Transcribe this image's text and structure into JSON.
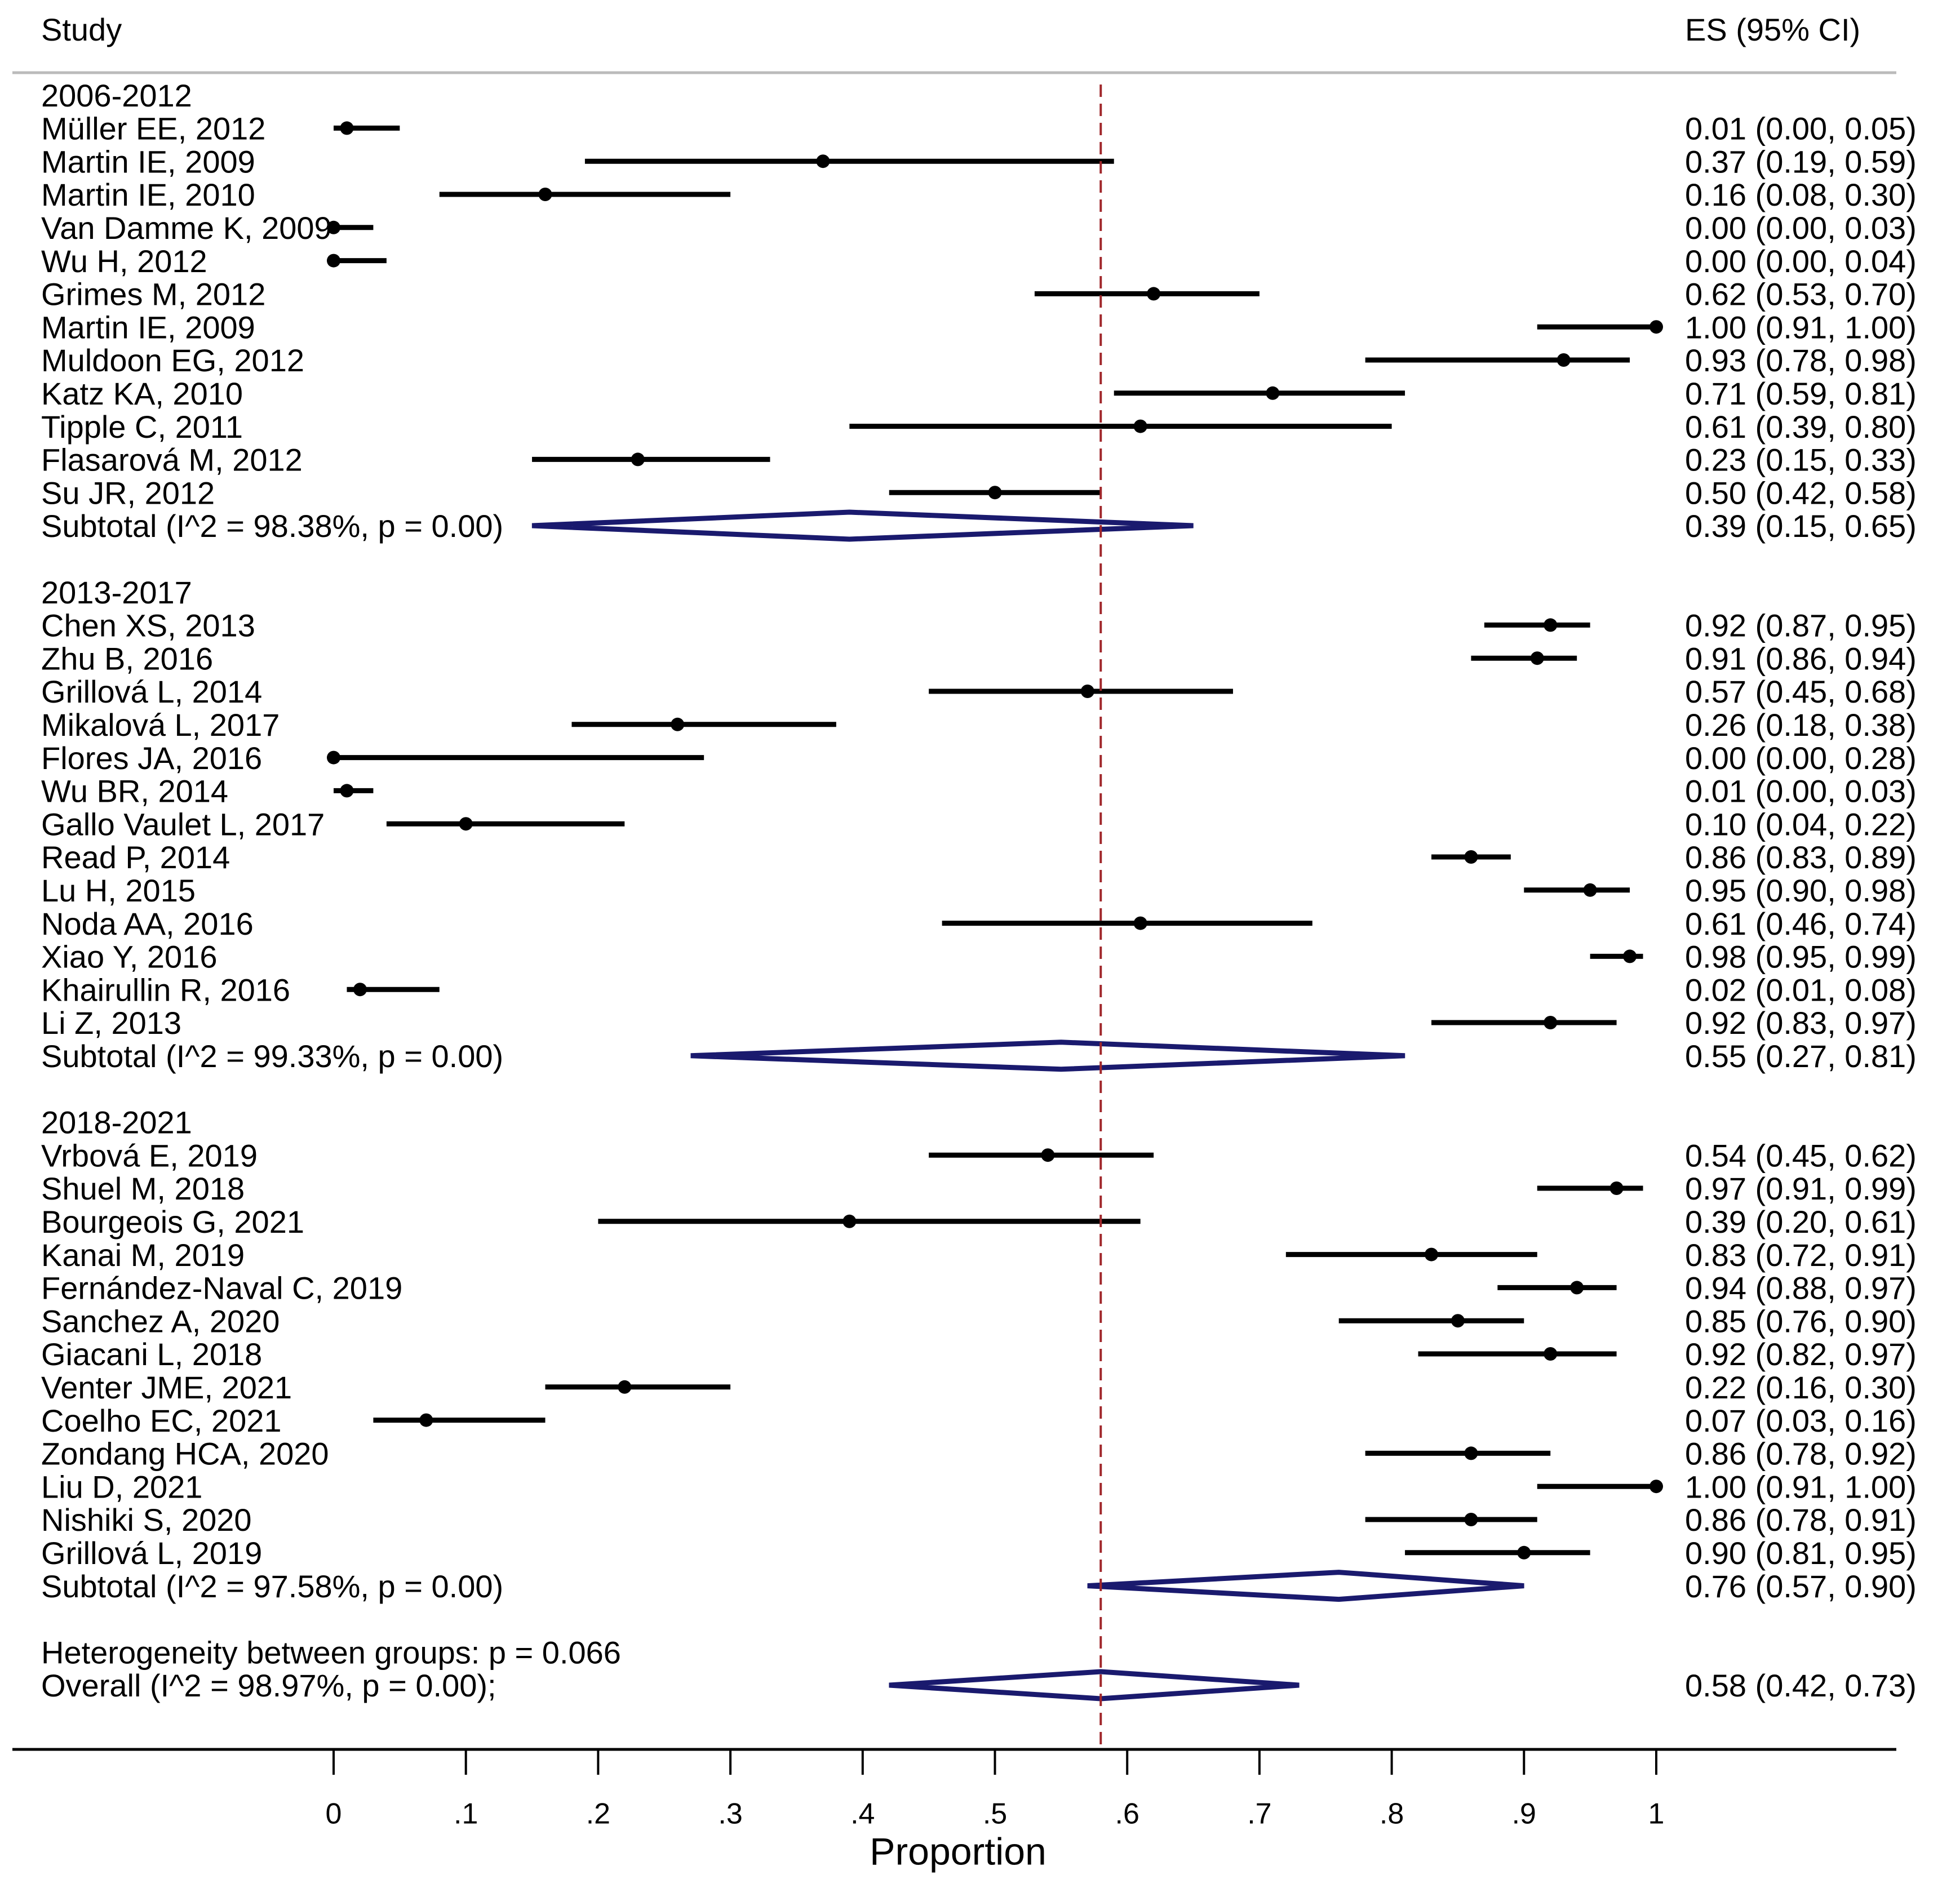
{
  "chart_data": {
    "type": "forest",
    "header": {
      "study": "Study",
      "es": "ES (95% CI)"
    },
    "xlabel": "Proportion",
    "xlim": [
      0,
      1
    ],
    "xticks": [
      0,
      0.1,
      0.2,
      0.3,
      0.4,
      0.5,
      0.6,
      0.7,
      0.8,
      0.9,
      1
    ],
    "xtick_labels": [
      "0",
      ".1",
      ".2",
      ".3",
      ".4",
      ".5",
      ".6",
      ".7",
      ".8",
      ".9",
      "1"
    ],
    "reference_line": 0.58,
    "colors": {
      "study": "#000000",
      "diamond": "#1a1a6e",
      "reference": "#a0262a"
    },
    "groups": [
      {
        "label": "2006-2012",
        "studies": [
          {
            "name": "Müller EE, 2012",
            "es": 0.01,
            "lo": 0.0,
            "hi": 0.05,
            "text": "0.01 (0.00, 0.05)"
          },
          {
            "name": "Martin IE, 2009",
            "es": 0.37,
            "lo": 0.19,
            "hi": 0.59,
            "text": "0.37 (0.19, 0.59)"
          },
          {
            "name": "Martin IE, 2010",
            "es": 0.16,
            "lo": 0.08,
            "hi": 0.3,
            "text": "0.16 (0.08, 0.30)"
          },
          {
            "name": "Van Damme K, 2009",
            "es": 0.0,
            "lo": 0.0,
            "hi": 0.03,
            "text": "0.00 (0.00, 0.03)"
          },
          {
            "name": "Wu H, 2012",
            "es": 0.0,
            "lo": 0.0,
            "hi": 0.04,
            "text": "0.00 (0.00, 0.04)"
          },
          {
            "name": "Grimes  M, 2012",
            "es": 0.62,
            "lo": 0.53,
            "hi": 0.7,
            "text": "0.62 (0.53, 0.70)"
          },
          {
            "name": "Martin IE, 2009",
            "es": 1.0,
            "lo": 0.91,
            "hi": 1.0,
            "text": "1.00 (0.91, 1.00)"
          },
          {
            "name": "Muldoon EG, 2012",
            "es": 0.93,
            "lo": 0.78,
            "hi": 0.98,
            "text": "0.93 (0.78, 0.98)"
          },
          {
            "name": "Katz KA, 2010",
            "es": 0.71,
            "lo": 0.59,
            "hi": 0.81,
            "text": "0.71 (0.59, 0.81)"
          },
          {
            "name": "Tipple C, 2011",
            "es": 0.61,
            "lo": 0.39,
            "hi": 0.8,
            "text": "0.61 (0.39, 0.80)"
          },
          {
            "name": "Flasarová M, 2012",
            "es": 0.23,
            "lo": 0.15,
            "hi": 0.33,
            "text": "0.23 (0.15, 0.33)"
          },
          {
            "name": "Su JR, 2012",
            "es": 0.5,
            "lo": 0.42,
            "hi": 0.58,
            "text": "0.50 (0.42, 0.58)"
          }
        ],
        "subtotal": {
          "label": "Subtotal  (I^2 = 98.38%, p = 0.00)",
          "es": 0.39,
          "lo": 0.15,
          "hi": 0.65,
          "text": "0.39 (0.15, 0.65)"
        }
      },
      {
        "label": "2013-2017",
        "studies": [
          {
            "name": "Chen XS, 2013",
            "es": 0.92,
            "lo": 0.87,
            "hi": 0.95,
            "text": "0.92 (0.87, 0.95)"
          },
          {
            "name": "Zhu B, 2016",
            "es": 0.91,
            "lo": 0.86,
            "hi": 0.94,
            "text": "0.91 (0.86, 0.94)"
          },
          {
            "name": "Grillová L, 2014",
            "es": 0.57,
            "lo": 0.45,
            "hi": 0.68,
            "text": "0.57 (0.45, 0.68)"
          },
          {
            "name": "Mikalová L, 2017",
            "es": 0.26,
            "lo": 0.18,
            "hi": 0.38,
            "text": "0.26 (0.18, 0.38)"
          },
          {
            "name": "Flores JA, 2016",
            "es": 0.0,
            "lo": 0.0,
            "hi": 0.28,
            "text": "0.00 (0.00, 0.28)"
          },
          {
            "name": "Wu BR, 2014",
            "es": 0.01,
            "lo": 0.0,
            "hi": 0.03,
            "text": "0.01 (0.00, 0.03)"
          },
          {
            "name": "Gallo Vaulet L, 2017",
            "es": 0.1,
            "lo": 0.04,
            "hi": 0.22,
            "text": "0.10 (0.04, 0.22)"
          },
          {
            "name": "Read P, 2014",
            "es": 0.86,
            "lo": 0.83,
            "hi": 0.89,
            "text": "0.86 (0.83, 0.89)"
          },
          {
            "name": "Lu H, 2015",
            "es": 0.95,
            "lo": 0.9,
            "hi": 0.98,
            "text": "0.95 (0.90, 0.98)"
          },
          {
            "name": "Noda AA, 2016",
            "es": 0.61,
            "lo": 0.46,
            "hi": 0.74,
            "text": "0.61 (0.46, 0.74)"
          },
          {
            "name": "Xiao Y, 2016",
            "es": 0.98,
            "lo": 0.95,
            "hi": 0.99,
            "text": "0.98 (0.95, 0.99)"
          },
          {
            "name": "Khairullin R, 2016",
            "es": 0.02,
            "lo": 0.01,
            "hi": 0.08,
            "text": "0.02 (0.01, 0.08)"
          },
          {
            "name": "Li Z, 2013",
            "es": 0.92,
            "lo": 0.83,
            "hi": 0.97,
            "text": "0.92 (0.83, 0.97)"
          }
        ],
        "subtotal": {
          "label": "Subtotal  (I^2 = 99.33%, p = 0.00)",
          "es": 0.55,
          "lo": 0.27,
          "hi": 0.81,
          "text": "0.55 (0.27, 0.81)"
        }
      },
      {
        "label": "2018-2021",
        "studies": [
          {
            "name": "Vrbová E, 2019",
            "es": 0.54,
            "lo": 0.45,
            "hi": 0.62,
            "text": "0.54 (0.45, 0.62)"
          },
          {
            "name": "Shuel M, 2018",
            "es": 0.97,
            "lo": 0.91,
            "hi": 0.99,
            "text": "0.97 (0.91, 0.99)"
          },
          {
            "name": "Bourgeois G, 2021",
            "es": 0.39,
            "lo": 0.2,
            "hi": 0.61,
            "text": "0.39 (0.20, 0.61)"
          },
          {
            "name": "Kanai M, 2019",
            "es": 0.83,
            "lo": 0.72,
            "hi": 0.91,
            "text": "0.83 (0.72, 0.91)"
          },
          {
            "name": "Fernández-Naval C, 2019",
            "es": 0.94,
            "lo": 0.88,
            "hi": 0.97,
            "text": "0.94 (0.88, 0.97)"
          },
          {
            "name": "Sanchez A, 2020",
            "es": 0.85,
            "lo": 0.76,
            "hi": 0.9,
            "text": "0.85 (0.76, 0.90)"
          },
          {
            "name": "Giacani L, 2018",
            "es": 0.92,
            "lo": 0.82,
            "hi": 0.97,
            "text": "0.92 (0.82, 0.97)"
          },
          {
            "name": "Venter JME, 2021",
            "es": 0.22,
            "lo": 0.16,
            "hi": 0.3,
            "text": "0.22 (0.16, 0.30)"
          },
          {
            "name": "Coelho EC, 2021",
            "es": 0.07,
            "lo": 0.03,
            "hi": 0.16,
            "text": "0.07 (0.03, 0.16)"
          },
          {
            "name": "Zondang HCA, 2020",
            "es": 0.86,
            "lo": 0.78,
            "hi": 0.92,
            "text": "0.86 (0.78, 0.92)"
          },
          {
            "name": "Liu D, 2021",
            "es": 1.0,
            "lo": 0.91,
            "hi": 1.0,
            "text": "1.00 (0.91, 1.00)"
          },
          {
            "name": "Nishiki S, 2020",
            "es": 0.86,
            "lo": 0.78,
            "hi": 0.91,
            "text": "0.86 (0.78, 0.91)"
          },
          {
            "name": "Grillová L, 2019",
            "es": 0.9,
            "lo": 0.81,
            "hi": 0.95,
            "text": "0.90 (0.81, 0.95)"
          }
        ],
        "subtotal": {
          "label": "Subtotal  (I^2 = 97.58%, p = 0.00)",
          "es": 0.76,
          "lo": 0.57,
          "hi": 0.9,
          "text": "0.76 (0.57, 0.90)"
        }
      }
    ],
    "heterogeneity": "Heterogeneity between groups: p = 0.066",
    "overall": {
      "label": "Overall  (I^2 = 98.97%, p = 0.00);",
      "es": 0.58,
      "lo": 0.42,
      "hi": 0.73,
      "text": "0.58 (0.42, 0.73)"
    }
  }
}
